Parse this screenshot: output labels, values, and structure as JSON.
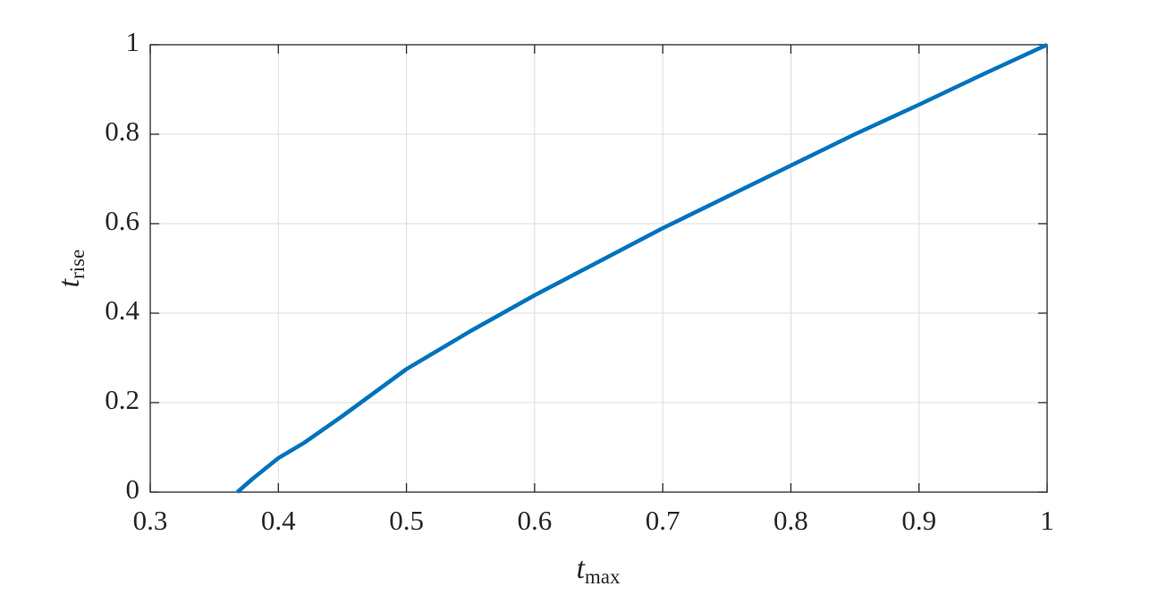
{
  "chart_data": {
    "type": "line",
    "xlabel": {
      "text": "t",
      "subscript": "max"
    },
    "ylabel": {
      "text": "t",
      "subscript": "rise"
    },
    "x": [
      0.368,
      0.38,
      0.4,
      0.42,
      0.45,
      0.5,
      0.55,
      0.6,
      0.65,
      0.7,
      0.75,
      0.8,
      0.85,
      0.9,
      0.95,
      1.0
    ],
    "values": [
      0,
      0.03,
      0.076,
      0.11,
      0.17,
      0.275,
      0.36,
      0.44,
      0.515,
      0.59,
      0.66,
      0.73,
      0.8,
      0.866,
      0.934,
      1.0
    ],
    "color": "#0072bd",
    "xlim": [
      0.3,
      1
    ],
    "xticks": [
      0.3,
      0.4,
      0.5,
      0.6,
      0.7,
      0.8,
      0.9,
      1
    ],
    "ylim": [
      0,
      1
    ],
    "yticks": [
      0,
      0.2,
      0.4,
      0.6,
      0.8,
      1
    ],
    "grid": true
  }
}
